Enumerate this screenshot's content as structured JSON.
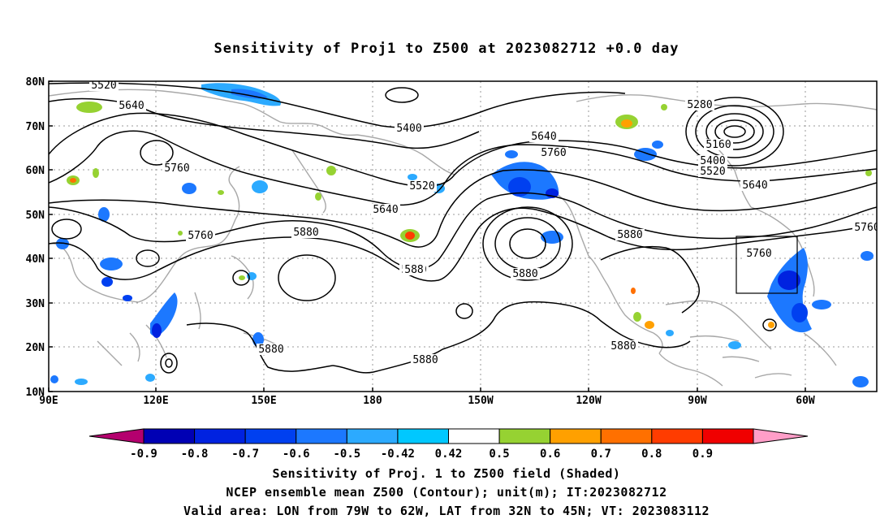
{
  "title": "Sensitivity of Proj1 to Z500 at 2023082712 +0.0 day",
  "lon_ticks": [
    "90E",
    "120E",
    "150E",
    "180",
    "150W",
    "120W",
    "90W",
    "60W"
  ],
  "lat_ticks": [
    "80N",
    "70N",
    "60N",
    "50N",
    "40N",
    "30N",
    "20N",
    "10N"
  ],
  "contour_labels": [
    "5520",
    "5640",
    "5400",
    "5640",
    "5760",
    "5280",
    "5160",
    "5400",
    "5520",
    "5640",
    "5760",
    "5520",
    "5640",
    "5760",
    "5880",
    "5880",
    "5760",
    "5760",
    "5880",
    "5880",
    "5880",
    "5880",
    "5760",
    "588"
  ],
  "colorbar": {
    "colors": [
      "#b4006e",
      "#0000b4",
      "#0022e0",
      "#0040f0",
      "#1c78ff",
      "#2caaff",
      "#00c8ff",
      "#ffffff",
      "#96d232",
      "#ffa000",
      "#ff7000",
      "#ff3c00",
      "#f00000",
      "#ff9ec8"
    ],
    "labels": [
      "-0.9",
      "-0.8",
      "-0.7",
      "-0.6",
      "-0.5",
      "-0.42",
      "0.42",
      "0.5",
      "0.6",
      "0.7",
      "0.8",
      "0.9"
    ]
  },
  "caption": {
    "line1": "Sensitivity of Proj. 1 to Z500 field (Shaded)",
    "line2": "NCEP ensemble mean Z500 (Contour); unit(m); IT:2023082712",
    "line3": "Valid area: LON from 79W to 62W, LAT from 32N to 45N; VT: 2023083112"
  },
  "valid_area": {
    "lon_min": -79,
    "lon_max": -62,
    "lat_min": 32,
    "lat_max": 45
  }
}
